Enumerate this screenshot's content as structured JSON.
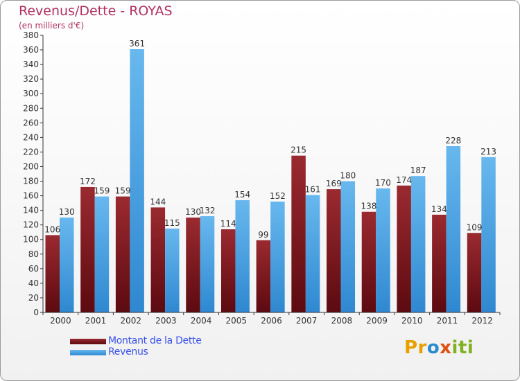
{
  "title": "Revenus/Dette - ROYAS",
  "subtitle": "(en milliers d'€)",
  "logo": {
    "p1": "Pr",
    "p2": "o",
    "p3": "x",
    "p4": "iti"
  },
  "colors": {
    "debt_top": "#9a2a30",
    "debt_bottom": "#5c0a10",
    "rev_top": "#68b8ee",
    "rev_bottom": "#2f88d0",
    "title": "#b03060",
    "legend_text": "#3a52e8"
  },
  "chart_data": {
    "type": "bar",
    "title": "Revenus/Dette - ROYAS",
    "subtitle": "(en milliers d'€)",
    "xlabel": "",
    "ylabel": "",
    "ylim": [
      0,
      380
    ],
    "ytick_step": 20,
    "grid": false,
    "legend_placement": "bottom-left",
    "categories": [
      "2000",
      "2001",
      "2002",
      "2003",
      "2004",
      "2005",
      "2006",
      "2007",
      "2008",
      "2009",
      "2010",
      "2011",
      "2012"
    ],
    "series": [
      {
        "name": "Montant de la Dette",
        "values": [
          106,
          172,
          159,
          144,
          130,
          114,
          99,
          215,
          169,
          138,
          174,
          134,
          109
        ]
      },
      {
        "name": "Revenus",
        "values": [
          130,
          159,
          361,
          115,
          132,
          154,
          152,
          161,
          180,
          170,
          187,
          228,
          213
        ]
      }
    ]
  }
}
